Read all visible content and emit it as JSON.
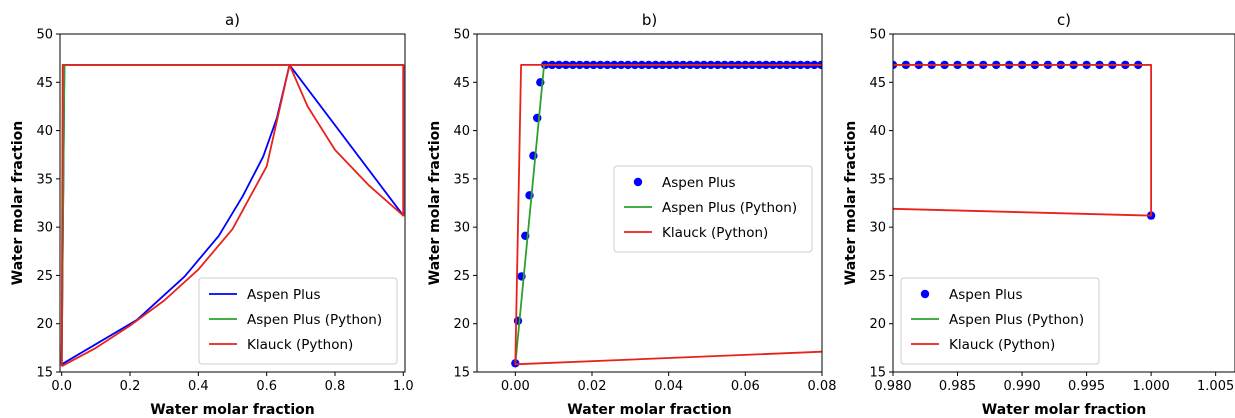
{
  "colors": {
    "aspen": "#0000ff",
    "aspen_python": "#2ca02c",
    "klauck": "#e8221b",
    "axis": "#000000"
  },
  "chart_data": [
    {
      "type": "line",
      "title": "a)",
      "xlabel": "Water molar fraction",
      "ylabel": "Water molar fraction",
      "xlim": [
        -0.005,
        1.005
      ],
      "ylim": [
        15,
        50
      ],
      "xticks": [
        0.0,
        0.2,
        0.4,
        0.6,
        0.8,
        1.0
      ],
      "xticklabels": [
        "0.0",
        "0.2",
        "0.4",
        "0.6",
        "0.8",
        "1.0"
      ],
      "yticks": [
        15,
        20,
        25,
        30,
        35,
        40,
        45,
        50
      ],
      "yticklabels": [
        "15",
        "20",
        "25",
        "30",
        "35",
        "40",
        "45",
        "50"
      ],
      "legend": "lower-right",
      "series": [
        {
          "name": "Aspen Plus",
          "style": "line",
          "color": "#0000ff",
          "x": [
            0.0,
            0.22,
            0.36,
            0.46,
            0.53,
            0.59,
            0.63,
            0.667,
            1.0,
            1.0,
            0.008,
            0.0
          ],
          "y": [
            15.8,
            20.4,
            24.9,
            29.1,
            33.2,
            37.3,
            41.3,
            46.8,
            31.2,
            46.8,
            46.8,
            15.8
          ]
        },
        {
          "name": "Aspen Plus (Python)",
          "style": "line",
          "color": "#2ca02c",
          "x": [
            0.0,
            0.008,
            0.5,
            1.0
          ],
          "y": [
            15.8,
            46.8,
            46.8,
            46.8
          ]
        },
        {
          "name": "Klauck (Python)",
          "style": "line",
          "color": "#e8221b",
          "x": [
            0.0,
            0.1,
            0.2,
            0.3,
            0.4,
            0.5,
            0.6,
            0.667,
            0.72,
            0.8,
            0.9,
            1.0,
            1.0,
            0.003,
            0.0
          ],
          "y": [
            15.6,
            17.5,
            19.8,
            22.4,
            25.6,
            29.8,
            36.3,
            46.8,
            42.5,
            38.0,
            34.3,
            31.2,
            46.8,
            46.8,
            15.6
          ]
        }
      ]
    },
    {
      "type": "line",
      "title": "b)",
      "xlabel": "Water molar fraction",
      "ylabel": "Water molar fraction",
      "xlim": [
        -0.01,
        0.08
      ],
      "ylim": [
        15,
        50
      ],
      "xticks": [
        0.0,
        0.02,
        0.04,
        0.06,
        0.08
      ],
      "xticklabels": [
        "0.00",
        "0.02",
        "0.04",
        "0.06",
        "0.08"
      ],
      "yticks": [
        15,
        20,
        25,
        30,
        35,
        40,
        45,
        50
      ],
      "yticklabels": [
        "15",
        "20",
        "25",
        "30",
        "35",
        "40",
        "45",
        "50"
      ],
      "legend": "center-right",
      "series": [
        {
          "name": "Aspen Plus",
          "style": "markers",
          "color": "#0000ff",
          "x": [
            0.0,
            0.0007,
            0.0016,
            0.0026,
            0.0037,
            0.0047,
            0.0057,
            0.0065,
            0.0078,
            0.0096,
            0.0114,
            0.0132,
            0.015,
            0.0168,
            0.0186,
            0.0204,
            0.0222,
            0.024,
            0.0258,
            0.0276,
            0.0294,
            0.0312,
            0.033,
            0.0348,
            0.0366,
            0.0384,
            0.0402,
            0.042,
            0.0438,
            0.0456,
            0.0474,
            0.0492,
            0.051,
            0.0528,
            0.0546,
            0.0564,
            0.0582,
            0.06,
            0.0618,
            0.0636,
            0.0654,
            0.0672,
            0.069,
            0.0708,
            0.0726,
            0.0744,
            0.0762,
            0.078,
            0.0798
          ],
          "y": [
            15.9,
            20.3,
            24.9,
            29.1,
            33.3,
            37.4,
            41.3,
            45.0,
            46.8,
            46.8,
            46.8,
            46.8,
            46.8,
            46.8,
            46.8,
            46.8,
            46.8,
            46.8,
            46.8,
            46.8,
            46.8,
            46.8,
            46.8,
            46.8,
            46.8,
            46.8,
            46.8,
            46.8,
            46.8,
            46.8,
            46.8,
            46.8,
            46.8,
            46.8,
            46.8,
            46.8,
            46.8,
            46.8,
            46.8,
            46.8,
            46.8,
            46.8,
            46.8,
            46.8,
            46.8,
            46.8,
            46.8,
            46.8,
            46.8
          ]
        },
        {
          "name": "Aspen Plus (Python)",
          "style": "line",
          "color": "#2ca02c",
          "x": [
            0.0,
            0.0075,
            0.08
          ],
          "y": [
            15.8,
            46.8,
            46.8
          ]
        },
        {
          "name": "Klauck (Python)",
          "style": "line",
          "color": "#e8221b",
          "x": [
            0.08,
            0.0,
            0.0015,
            0.08
          ],
          "y": [
            17.1,
            15.8,
            46.8,
            46.8
          ]
        }
      ]
    },
    {
      "type": "line",
      "title": "c)",
      "xlabel": "Water molar fraction",
      "ylabel": "Water molar fraction",
      "xlim": [
        0.98,
        1.0065
      ],
      "ylim": [
        15,
        50
      ],
      "xticks": [
        0.98,
        0.985,
        0.99,
        0.995,
        1.0,
        1.005
      ],
      "xticklabels": [
        "0.980",
        "0.985",
        "0.990",
        "0.995",
        "1.000",
        "1.005"
      ],
      "yticks": [
        15,
        20,
        25,
        30,
        35,
        40,
        45,
        50
      ],
      "yticklabels": [
        "15",
        "20",
        "25",
        "30",
        "35",
        "40",
        "45",
        "50"
      ],
      "legend": "lower-left",
      "series": [
        {
          "name": "Aspen Plus",
          "style": "markers",
          "color": "#0000ff",
          "x": [
            0.98,
            0.981,
            0.982,
            0.983,
            0.984,
            0.985,
            0.986,
            0.987,
            0.988,
            0.989,
            0.99,
            0.991,
            0.992,
            0.993,
            0.994,
            0.995,
            0.996,
            0.997,
            0.998,
            0.999,
            1.0
          ],
          "y": [
            46.8,
            46.8,
            46.8,
            46.8,
            46.8,
            46.8,
            46.8,
            46.8,
            46.8,
            46.8,
            46.8,
            46.8,
            46.8,
            46.8,
            46.8,
            46.8,
            46.8,
            46.8,
            46.8,
            46.8,
            31.2
          ]
        },
        {
          "name": "Aspen Plus (Python)",
          "style": "line",
          "color": "#2ca02c",
          "x": [
            0.98,
            1.0
          ],
          "y": [
            46.8,
            46.8
          ]
        },
        {
          "name": "Klauck (Python)",
          "style": "line",
          "color": "#e8221b",
          "x": [
            0.98,
            1.0,
            1.0,
            0.98
          ],
          "y": [
            31.9,
            31.2,
            46.8,
            46.8
          ]
        }
      ]
    }
  ]
}
